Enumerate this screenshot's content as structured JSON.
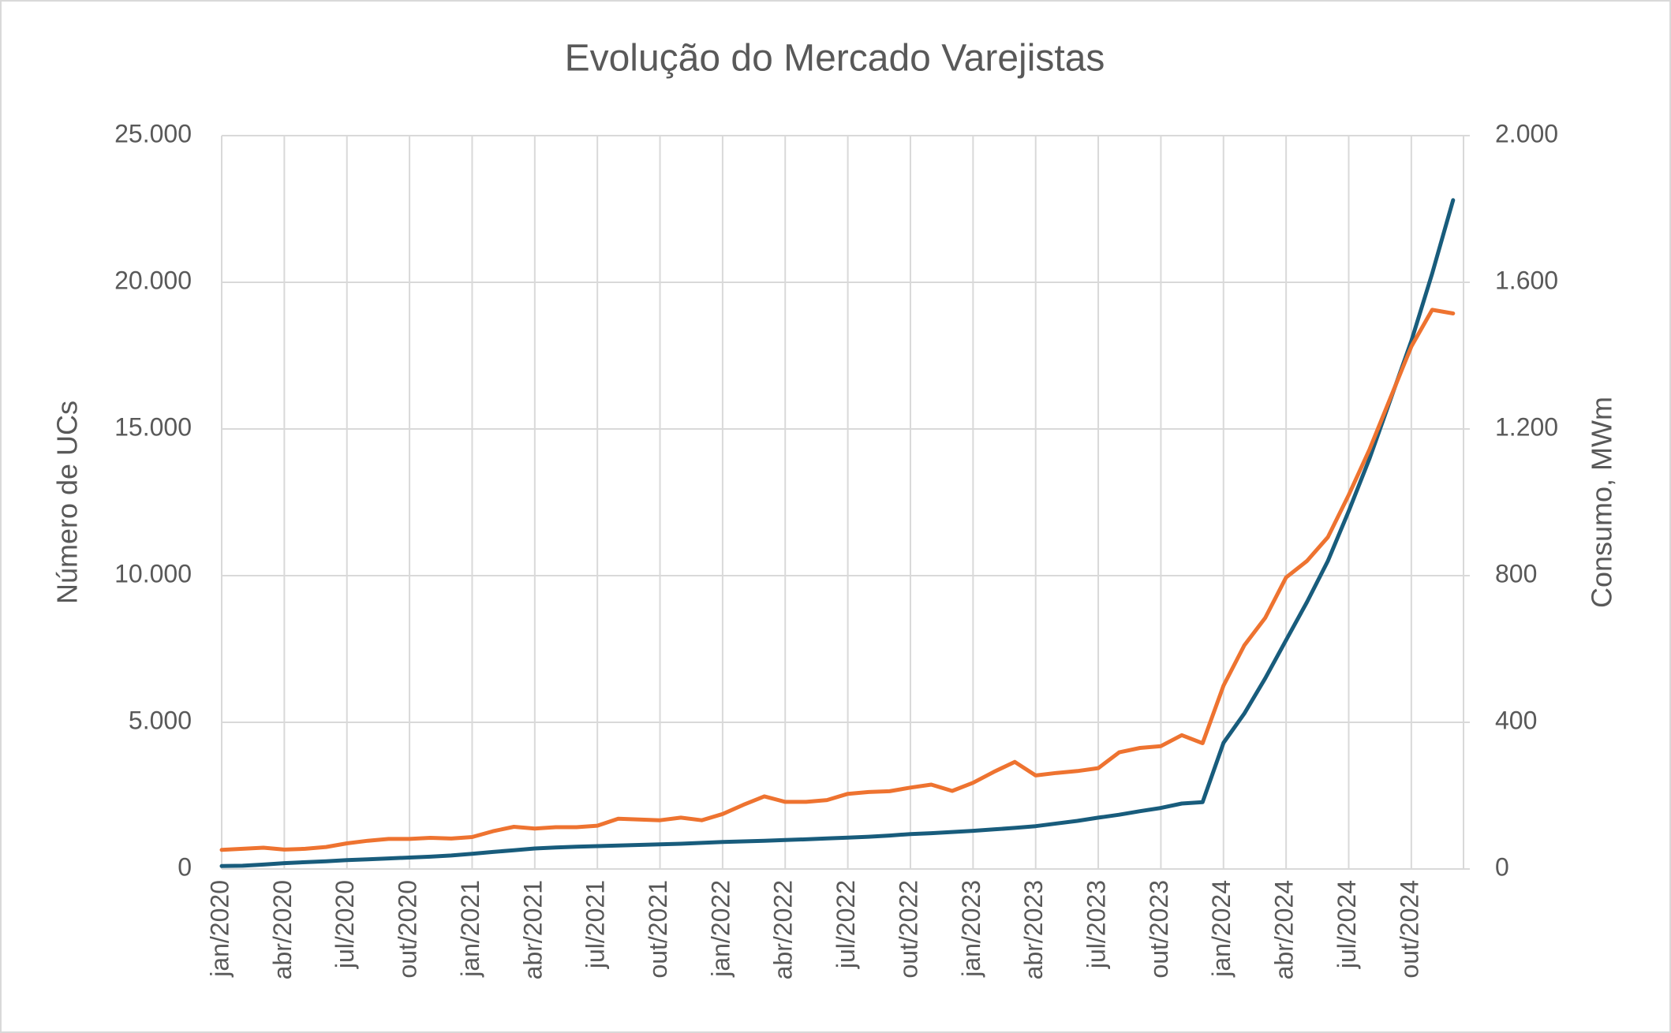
{
  "chart_data": {
    "type": "line",
    "title": "Evolução do Mercado Varejistas",
    "y_label": "Número de UCs",
    "y2_label": "Consumo, MWm",
    "categories": [
      "jan/2020",
      null,
      null,
      "abr/2020",
      null,
      null,
      "jul/2020",
      null,
      null,
      "out/2020",
      null,
      null,
      "jan/2021",
      null,
      null,
      "abr/2021",
      null,
      null,
      "jul/2021",
      null,
      null,
      "out/2021",
      null,
      null,
      "jan/2022",
      null,
      null,
      "abr/2022",
      null,
      null,
      "jul/2022",
      null,
      null,
      "out/2022",
      null,
      null,
      "jan/2023",
      null,
      null,
      "abr/2023",
      null,
      null,
      "jul/2023",
      null,
      null,
      "out/2023",
      null,
      null,
      "jan/2024",
      null,
      null,
      "abr/2024",
      null,
      null,
      "jul/2024",
      null,
      null,
      "out/2024",
      null,
      null
    ],
    "series": [
      {
        "color": "#185c7c",
        "axis": "y",
        "values": [
          100,
          110,
          150,
          200,
          230,
          260,
          300,
          330,
          360,
          390,
          420,
          460,
          520,
          580,
          640,
          700,
          730,
          760,
          780,
          800,
          820,
          840,
          860,
          890,
          920,
          940,
          960,
          990,
          1010,
          1040,
          1070,
          1100,
          1140,
          1190,
          1220,
          1260,
          1300,
          1350,
          1400,
          1460,
          1550,
          1640,
          1750,
          1850,
          1970,
          2080,
          2230,
          2280,
          4300,
          5300,
          6500,
          7800,
          9100,
          10500,
          12200,
          14000,
          16000,
          18000,
          20300,
          22800
        ]
      },
      {
        "color": "#ee7330",
        "axis": "y2",
        "values": [
          52,
          55,
          58,
          53,
          55,
          60,
          70,
          77,
          82,
          82,
          85,
          83,
          87,
          103,
          115,
          110,
          114,
          114,
          118,
          137,
          135,
          133,
          140,
          133,
          150,
          175,
          198,
          183,
          183,
          188,
          205,
          210,
          212,
          222,
          230,
          213,
          235,
          265,
          292,
          255,
          262,
          267,
          275,
          318,
          330,
          335,
          365,
          343,
          500,
          610,
          685,
          795,
          840,
          905,
          1020,
          1145,
          1285,
          1425,
          1525,
          1515
        ]
      }
    ],
    "ylim": [
      0,
      25000
    ],
    "yticks": [
      0,
      {
        "value": 5000,
        "label": "5.000"
      },
      {
        "value": 10000,
        "label": "10.000"
      },
      {
        "value": 15000,
        "label": "15.000"
      },
      {
        "value": 20000,
        "label": "20.000"
      },
      {
        "value": 25000,
        "label": "25.000"
      }
    ],
    "y2lim": [
      0,
      2000
    ],
    "y2ticks": [
      0,
      400,
      800,
      {
        "value": 1200,
        "label": "1.200"
      },
      {
        "value": 1600,
        "label": "1.600"
      },
      {
        "value": 2000,
        "label": "2.000"
      }
    ],
    "grid": true
  }
}
